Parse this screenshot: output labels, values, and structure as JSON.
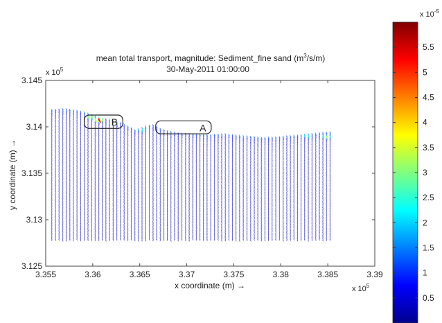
{
  "chart_data": {
    "type": "vector-field",
    "title": "mean total transport, magnitude: Sediment_fine sand (m",
    "title_unit_sup": "3",
    "title_unit_tail": "/s/m)",
    "subtitle": "30-May-2011 01:00:00",
    "xlabel": "x coordinate (m) →",
    "ylabel": "y coordinate (m) →",
    "x_scale_label": "x 10",
    "x_scale_exp": "5",
    "y_scale_label": "x 10",
    "y_scale_exp": "5",
    "xlim": [
      3.355,
      3.39
    ],
    "ylim": [
      3.125,
      3.145
    ],
    "x_ticks": [
      "3.355",
      "3.36",
      "3.365",
      "3.37",
      "3.375",
      "3.38",
      "3.385",
      "3.39"
    ],
    "x_tick_values": [
      3.355,
      3.36,
      3.365,
      3.37,
      3.375,
      3.38,
      3.385,
      3.39
    ],
    "y_ticks": [
      "3.145",
      "3.14",
      "3.135",
      "3.13",
      "3.125"
    ],
    "y_tick_values": [
      3.145,
      3.14,
      3.135,
      3.13,
      3.125
    ],
    "colorbar": {
      "scale_label": "x 10",
      "scale_exp": "-5",
      "ticks": [
        "5.5",
        "5",
        "4.5",
        "4",
        "3.5",
        "3",
        "2.5",
        "2",
        "1.5",
        "1",
        "0.5"
      ],
      "tick_values": [
        5.5,
        5,
        4.5,
        4,
        3.5,
        3,
        2.5,
        2,
        1.5,
        1,
        0.5
      ],
      "range": [
        0,
        6
      ],
      "colormap": "jet"
    },
    "grid": false,
    "boxes": [
      {
        "label": "B",
        "x": [
          3.3591,
          3.3632
        ],
        "y": [
          3.13983,
          3.14127
        ]
      },
      {
        "label": "A",
        "x": [
          3.3667,
          3.3726
        ],
        "y": [
          3.13925,
          3.14064
        ]
      }
    ],
    "field_extent": {
      "x": [
        3.3556,
        3.3852
      ],
      "y_bottom": 3.1278,
      "coast_x": [
        3.3556,
        3.357,
        3.3585,
        3.3595,
        3.3605,
        3.3615,
        3.3625,
        3.3632,
        3.3645,
        3.3655,
        3.3663,
        3.367,
        3.368,
        3.37,
        3.372,
        3.374,
        3.376,
        3.378,
        3.38,
        3.382,
        3.384,
        3.3852
      ],
      "coast_y": [
        3.1419,
        3.142,
        3.1418,
        3.1415,
        3.1411,
        3.1409,
        3.1406,
        3.1404,
        3.1397,
        3.1401,
        3.1403,
        3.1399,
        3.1396,
        3.1393,
        3.1392,
        3.1393,
        3.1391,
        3.1389,
        3.139,
        3.1392,
        3.1394,
        3.1395
      ]
    },
    "hotspots": [
      {
        "x": 3.3606,
        "y": 3.14085,
        "magnitude": 5.8
      },
      {
        "x": 3.3596,
        "y": 3.1412,
        "magnitude": 3.8
      },
      {
        "x": 3.3622,
        "y": 3.1404,
        "magnitude": 3.0
      },
      {
        "x": 3.3652,
        "y": 3.1398,
        "magnitude": 2.5
      },
      {
        "x": 3.3828,
        "y": 3.1391,
        "magnitude": 2.8
      },
      {
        "x": 3.3848,
        "y": 3.139,
        "magnitude": 3.3
      },
      {
        "x": 3.376,
        "y": 3.139,
        "magnitude": 1.8
      }
    ]
  }
}
